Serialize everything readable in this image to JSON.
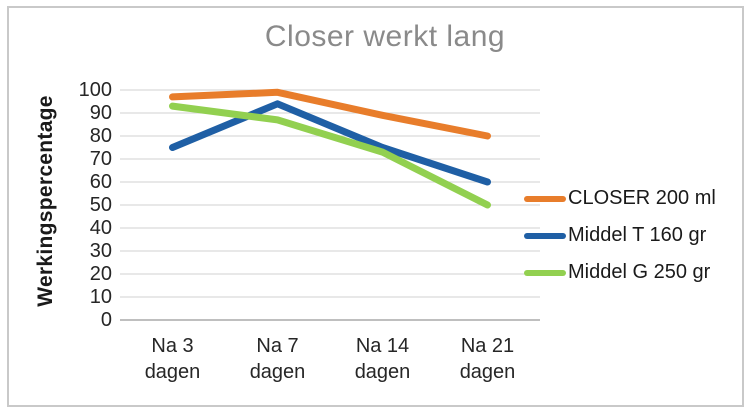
{
  "figure": {
    "background": "#ffffff",
    "border_color": "#c9c9c9"
  },
  "chart_data": {
    "type": "line",
    "title": "Closer werkt lang",
    "title_color": "#8a8a8a",
    "ylabel": "Werkingspercentage",
    "xlabel": "",
    "categories": [
      "Na 3\ndagen",
      "Na 7\ndagen",
      "Na 14\ndagen",
      "Na 21\ndagen"
    ],
    "yticks": [
      0,
      10,
      20,
      30,
      40,
      50,
      60,
      70,
      80,
      90,
      100
    ],
    "ylim": [
      0,
      100
    ],
    "grid": true,
    "gridline_color": "#d9d9d9",
    "axisline_color": "#bfbfbf",
    "legend_position": "right",
    "line_width": 7,
    "series": [
      {
        "name": "CLOSER 200 ml",
        "color": "#e87d2b",
        "values": [
          97,
          99,
          89,
          80
        ]
      },
      {
        "name": "Middel T 160 gr",
        "color": "#1f5fa5",
        "values": [
          75,
          94,
          75,
          60
        ]
      },
      {
        "name": "Middel G 250 gr",
        "color": "#92d050",
        "values": [
          93,
          87,
          73,
          50
        ]
      }
    ]
  }
}
